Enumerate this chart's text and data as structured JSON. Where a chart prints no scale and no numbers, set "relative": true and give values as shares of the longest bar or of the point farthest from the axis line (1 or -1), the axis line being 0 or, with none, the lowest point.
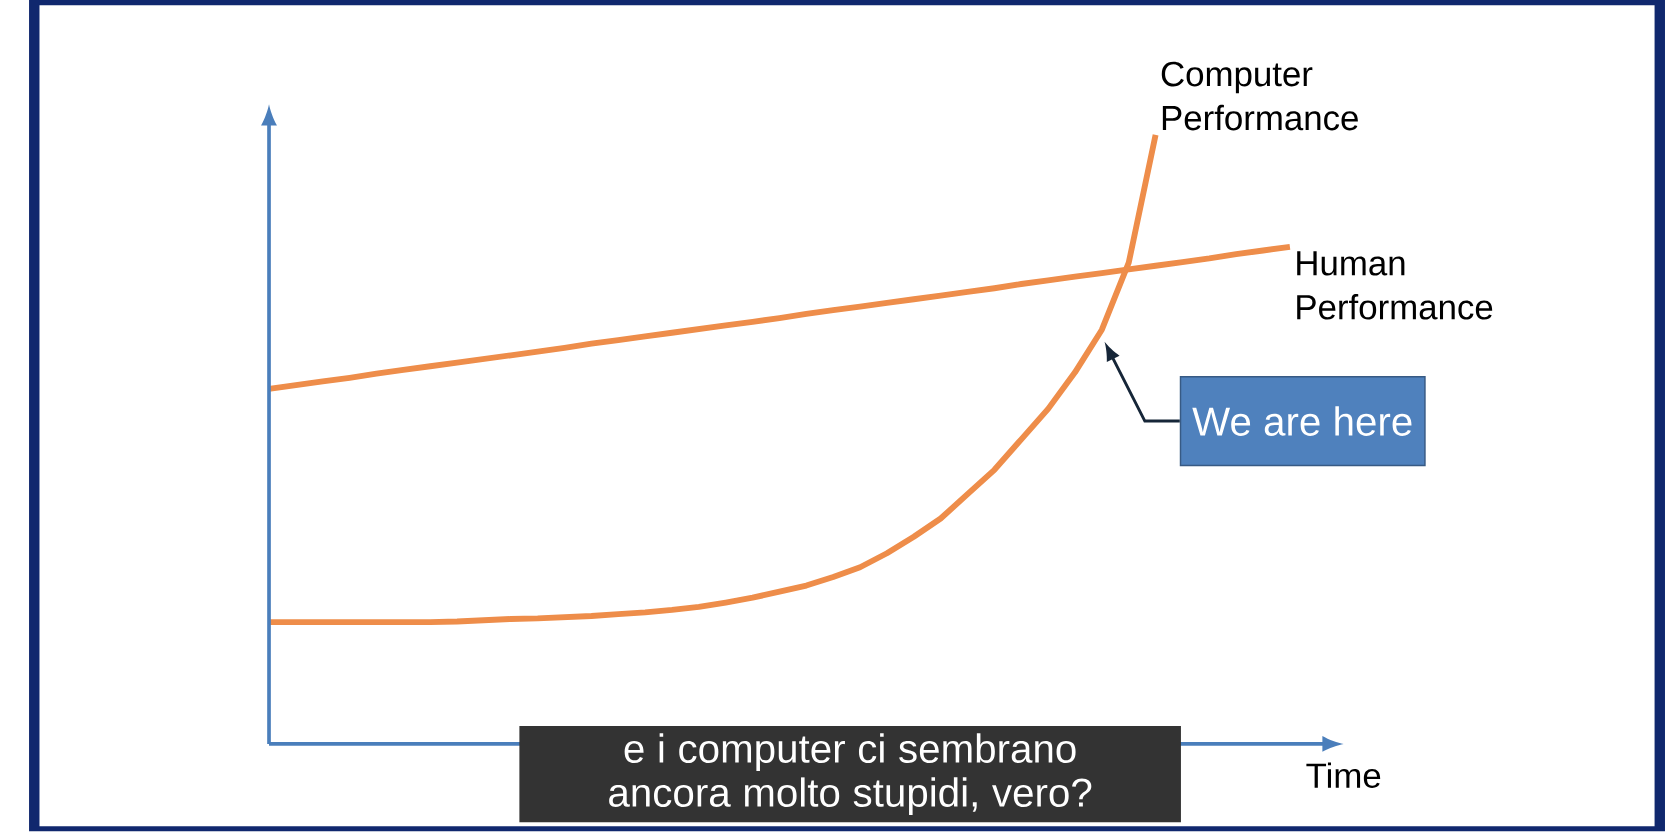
{
  "chart_data": {
    "type": "line",
    "relative": true,
    "xlabel": "Time",
    "categories": [
      null,
      null,
      null,
      null,
      null,
      null,
      null,
      null,
      null,
      null,
      null,
      null,
      null,
      null,
      null,
      null,
      null,
      null,
      null,
      null,
      null,
      null,
      null,
      null,
      null,
      null,
      null,
      null,
      null,
      null,
      null,
      null,
      null,
      null,
      null,
      null,
      null,
      null,
      null,
      null,
      null
    ],
    "series": [
      {
        "name": "Computer Performance",
        "color": "#ee8d4a",
        "values": [
          0.2,
          0.2,
          0.2,
          0.2,
          0.2,
          0.2,
          0.2,
          0.201,
          0.203,
          0.205,
          0.206,
          0.208,
          0.21,
          0.213,
          0.216,
          0.22,
          0.225,
          0.232,
          0.24,
          0.25,
          0.26,
          0.274,
          0.29,
          0.313,
          0.34,
          0.37,
          0.41,
          0.45,
          0.5,
          0.55,
          0.61,
          0.68,
          0.79,
          1.0,
          null,
          null,
          null,
          null,
          null,
          null,
          null
        ]
      },
      {
        "name": "Human Performance",
        "color": "#ee8d4a",
        "values": [
          0.583,
          0.589,
          0.595,
          0.601,
          0.608,
          0.614,
          0.62,
          0.626,
          0.632,
          0.638,
          0.644,
          0.65,
          0.657,
          0.663,
          0.669,
          0.675,
          0.681,
          0.687,
          0.693,
          0.699,
          0.706,
          0.712,
          0.718,
          0.724,
          0.73,
          0.736,
          0.742,
          0.748,
          0.755,
          0.761,
          0.767,
          0.773,
          0.779,
          0.785,
          0.791,
          0.797,
          0.804,
          0.81,
          0.816,
          null,
          null
        ]
      }
    ],
    "annotations": [
      "We are here",
      "e i computer ci sembrano ancora molto stupidi, vero?"
    ]
  }
}
